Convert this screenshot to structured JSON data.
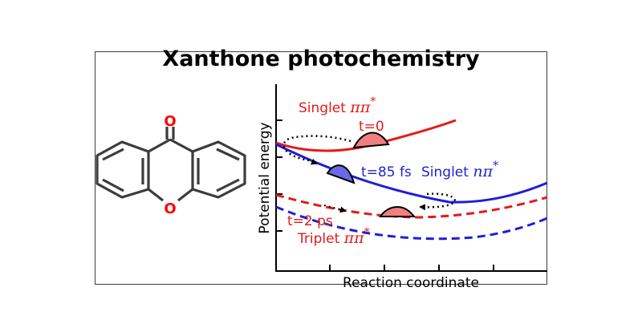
{
  "title": "Xanthone photochemistry",
  "molecule": {
    "oxygen_carbonyl": "O",
    "oxygen_ring": "O"
  },
  "axes": {
    "xlabel": "Reaction coordinate",
    "ylabel": "Potential energy"
  },
  "states": {
    "s_pipi": {
      "prefix": "Singlet ",
      "symbol": "ππ",
      "sup": "*",
      "color": "#e31a1c"
    },
    "s_npi": {
      "prefix": "Singlet ",
      "symbol": "nπ",
      "sup": "*",
      "color": "#1f1fd6"
    },
    "t_pipi": {
      "prefix": "Triplet ",
      "symbol": "ππ",
      "sup": "*",
      "color": "#e31a1c"
    }
  },
  "times": {
    "t0": "t=0",
    "t85": "t=85 fs",
    "t2": "t=2 ps"
  },
  "colors": {
    "red": "#e31a1c",
    "blue": "#1f1fd6",
    "red_fill": "#f08080",
    "blue_fill": "#6a6ae6"
  }
}
